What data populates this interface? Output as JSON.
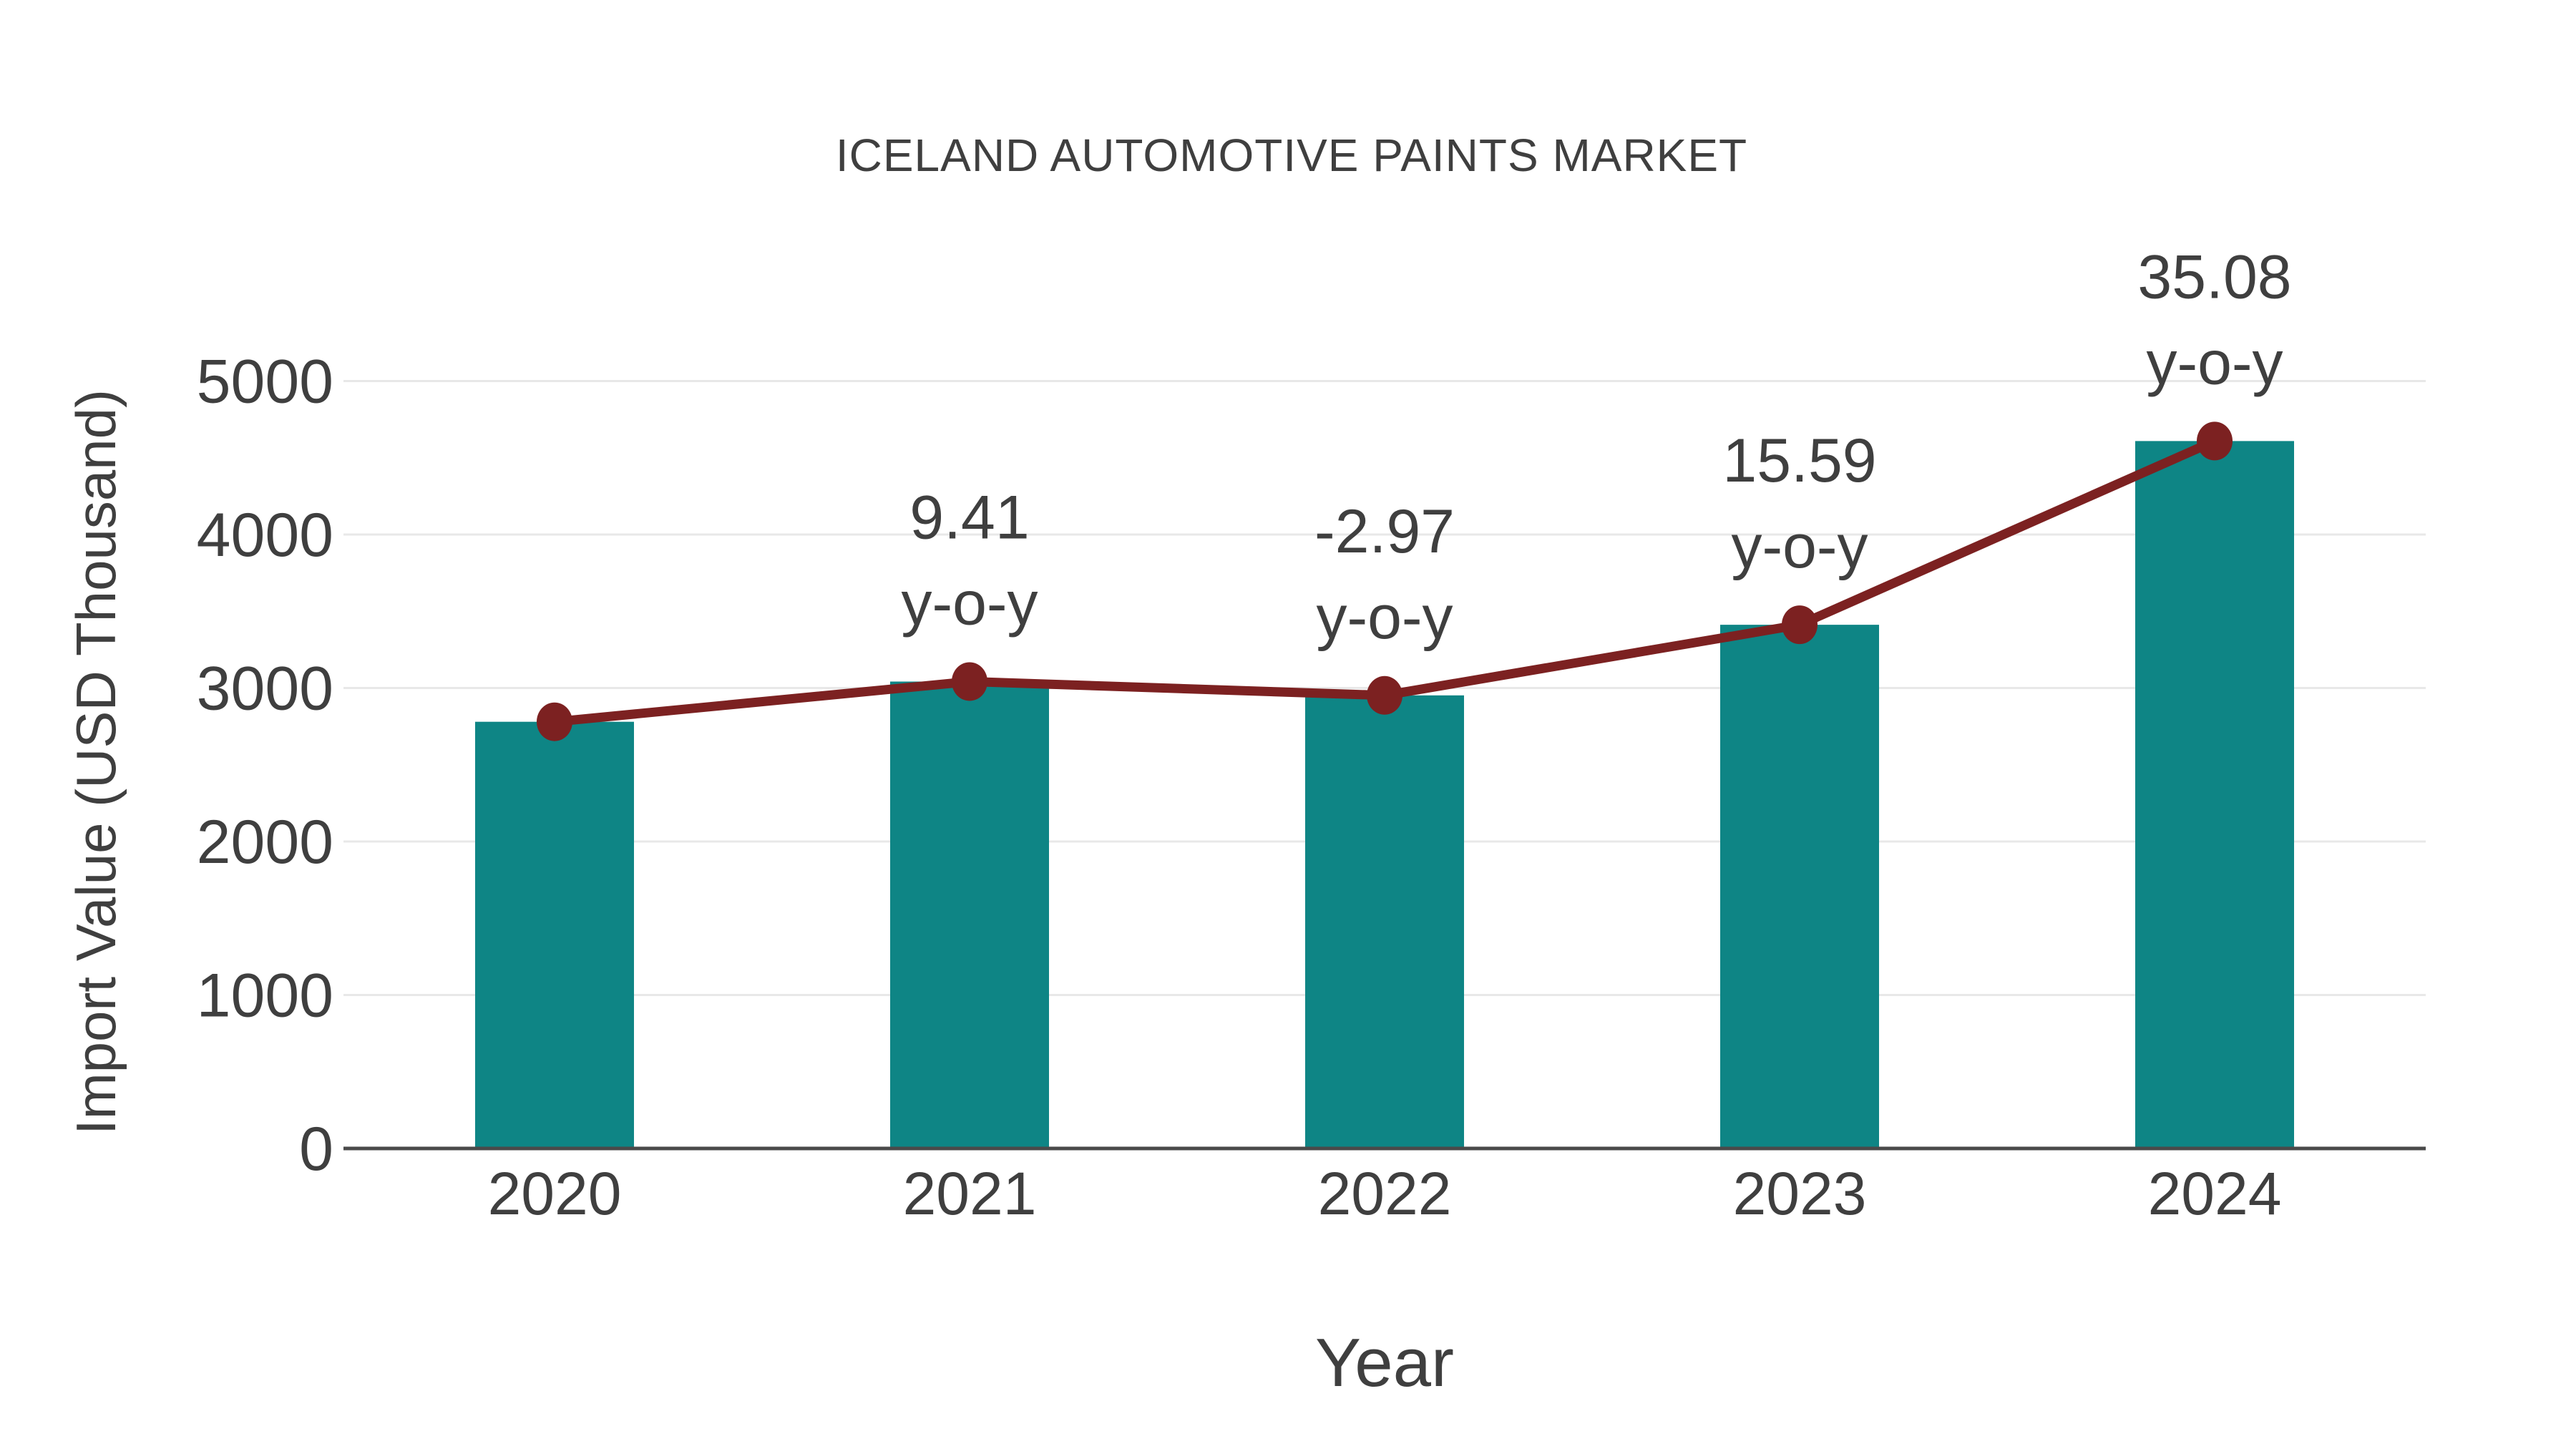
{
  "chart_data": {
    "type": "bar",
    "title": "ICELAND AUTOMOTIVE PAINTS MARKET",
    "xlabel": "Year",
    "ylabel": "Import Value (USD Thousand)",
    "categories": [
      "2020",
      "2021",
      "2022",
      "2023",
      "2024"
    ],
    "series": [
      {
        "name": "import-value-bars",
        "type": "bar",
        "values": [
          2780,
          3042,
          2952,
          3412,
          4609
        ]
      },
      {
        "name": "import-value-trend-line",
        "type": "line",
        "values": [
          2780,
          3042,
          2952,
          3412,
          4609
        ]
      }
    ],
    "annotations": [
      {
        "category": "2021",
        "value": "9.41",
        "unit": "y-o-y"
      },
      {
        "category": "2022",
        "value": "-2.97",
        "unit": "y-o-y"
      },
      {
        "category": "2023",
        "value": "15.59",
        "unit": "y-o-y"
      },
      {
        "category": "2024",
        "value": "35.08",
        "unit": "y-o-y"
      }
    ],
    "yticks": [
      "0",
      "1000",
      "2000",
      "3000",
      "4000",
      "5000"
    ],
    "ylim": [
      0,
      5000
    ],
    "grid": true,
    "legend_position": "none"
  },
  "colors": {
    "bar": "#0e8585",
    "line": "#7c2121",
    "marker": "#7c2121",
    "text": "#3f3f3f",
    "grid": "#e8e8e8",
    "axis": "#4a4a4a",
    "background": "#ffffff"
  }
}
